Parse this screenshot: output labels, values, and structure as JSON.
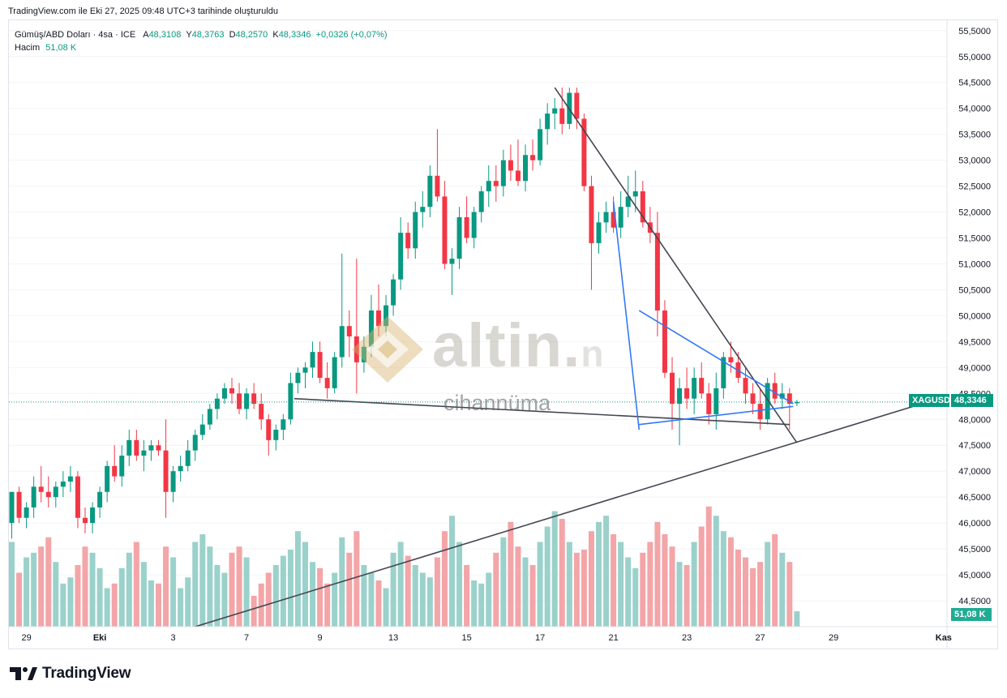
{
  "header": {
    "note": "TradingView.com ile Eki 27, 2025 09:48 UTC+3 tarihinde oluşturuldu"
  },
  "legend": {
    "symbol": "Gümüş/ABD Doları · 4sa · ICE",
    "o_label": "A",
    "o_value": "48,3108",
    "h_label": "Y",
    "h_value": "48,3763",
    "l_label": "D",
    "l_value": "48,2570",
    "c_label": "K",
    "c_value": "48,3346",
    "change": "+0,0326 (+0,07%)",
    "volume_label": "Hacim",
    "volume_value": "51,08 K"
  },
  "watermark": {
    "brand": "altin.",
    "brand_suffix": "n",
    "sub": "cihannüma"
  },
  "footer": {
    "brand": "TradingView"
  },
  "colors": {
    "up": "#089981",
    "down": "#f23645",
    "vol_up": "#9bd1cb",
    "vol_down": "#f3a5a8",
    "trend_dark": "#434651",
    "trend_blue": "#3179f5",
    "price_tag": "#089981"
  },
  "price_tags": {
    "symbol": "XAGUSD",
    "price": "48,3346",
    "volume": "51,08 K"
  },
  "chart_data": {
    "type": "candlestick",
    "symbol": "XAGUSD",
    "timeframe": "4sa",
    "ylim": [
      44.0,
      55.7
    ],
    "y_ticks": [
      "55,5000",
      "55,0000",
      "54,5000",
      "54,0000",
      "53,5000",
      "53,0000",
      "52,5000",
      "52,0000",
      "51,5000",
      "51,0000",
      "50,5000",
      "50,0000",
      "49,5000",
      "49,0000",
      "48,5000",
      "48,0000",
      "47,5000",
      "47,0000",
      "46,5000",
      "46,0000",
      "45,5000",
      "45,0000",
      "44,5000"
    ],
    "y_tick_values": [
      55.5,
      55.0,
      54.5,
      54.0,
      53.5,
      53.0,
      52.5,
      52.0,
      51.5,
      51.0,
      50.5,
      50.0,
      49.5,
      49.0,
      48.5,
      48.0,
      47.5,
      47.0,
      46.5,
      46.0,
      45.5,
      45.0,
      44.5
    ],
    "x_ticks": [
      {
        "label": "29",
        "bar": 2
      },
      {
        "label": "Eki",
        "bar": 12
      },
      {
        "label": "3",
        "bar": 22
      },
      {
        "label": "7",
        "bar": 32
      },
      {
        "label": "9",
        "bar": 42
      },
      {
        "label": "13",
        "bar": 52
      },
      {
        "label": "15",
        "bar": 62
      },
      {
        "label": "17",
        "bar": 72
      },
      {
        "label": "21",
        "bar": 82
      },
      {
        "label": "23",
        "bar": 92
      },
      {
        "label": "27",
        "bar": 102
      },
      {
        "label": "29",
        "bar": 112
      },
      {
        "label": "Kas",
        "bar": 127
      }
    ],
    "last_price": 48.3346,
    "volume_last": "51,08 K",
    "candles": [
      [
        46.0,
        46.6,
        45.7,
        46.6
      ],
      [
        46.6,
        46.7,
        46.0,
        46.1
      ],
      [
        46.1,
        46.4,
        45.9,
        46.3
      ],
      [
        46.3,
        46.9,
        46.1,
        46.7
      ],
      [
        46.7,
        47.1,
        46.4,
        46.6
      ],
      [
        46.6,
        46.9,
        46.3,
        46.5
      ],
      [
        46.5,
        46.8,
        46.3,
        46.7
      ],
      [
        46.7,
        47.0,
        46.5,
        46.8
      ],
      [
        46.8,
        47.1,
        46.6,
        46.9
      ],
      [
        46.9,
        47.0,
        45.9,
        46.1
      ],
      [
        46.1,
        46.3,
        45.8,
        46.0
      ],
      [
        46.0,
        46.4,
        45.8,
        46.3
      ],
      [
        46.3,
        46.7,
        46.1,
        46.6
      ],
      [
        46.6,
        47.2,
        46.4,
        47.1
      ],
      [
        47.1,
        47.5,
        46.8,
        46.9
      ],
      [
        46.9,
        47.5,
        46.7,
        47.3
      ],
      [
        47.3,
        47.8,
        47.1,
        47.6
      ],
      [
        47.6,
        47.8,
        47.2,
        47.3
      ],
      [
        47.3,
        47.6,
        47.0,
        47.4
      ],
      [
        47.4,
        47.6,
        47.2,
        47.5
      ],
      [
        47.5,
        47.6,
        47.3,
        47.4
      ],
      [
        47.4,
        48.0,
        46.1,
        46.6
      ],
      [
        46.6,
        47.1,
        46.4,
        47.0
      ],
      [
        47.0,
        47.3,
        46.8,
        47.1
      ],
      [
        47.1,
        47.6,
        47.0,
        47.4
      ],
      [
        47.4,
        47.8,
        47.2,
        47.7
      ],
      [
        47.7,
        48.1,
        47.6,
        47.9
      ],
      [
        47.9,
        48.3,
        47.8,
        48.2
      ],
      [
        48.2,
        48.5,
        48.0,
        48.4
      ],
      [
        48.4,
        48.7,
        48.3,
        48.6
      ],
      [
        48.6,
        48.8,
        48.3,
        48.5
      ],
      [
        48.5,
        48.7,
        48.1,
        48.2
      ],
      [
        48.2,
        48.6,
        48.0,
        48.5
      ],
      [
        48.5,
        48.7,
        48.2,
        48.3
      ],
      [
        48.3,
        48.5,
        47.8,
        48.0
      ],
      [
        48.0,
        48.1,
        47.3,
        47.6
      ],
      [
        47.6,
        47.9,
        47.4,
        47.8
      ],
      [
        47.8,
        48.1,
        47.6,
        48.0
      ],
      [
        48.0,
        48.9,
        47.9,
        48.7
      ],
      [
        48.7,
        49.0,
        48.5,
        48.9
      ],
      [
        48.9,
        49.1,
        48.6,
        49.0
      ],
      [
        49.0,
        49.5,
        48.8,
        49.3
      ],
      [
        49.3,
        49.5,
        48.7,
        48.8
      ],
      [
        48.8,
        49.1,
        48.4,
        48.6
      ],
      [
        48.6,
        49.3,
        48.5,
        49.2
      ],
      [
        49.2,
        51.2,
        49.0,
        49.8
      ],
      [
        49.8,
        50.1,
        49.2,
        49.6
      ],
      [
        49.6,
        51.1,
        48.5,
        49.1
      ],
      [
        49.1,
        49.6,
        48.9,
        49.4
      ],
      [
        49.4,
        50.4,
        49.2,
        50.1
      ],
      [
        50.1,
        50.6,
        49.6,
        49.8
      ],
      [
        49.8,
        50.4,
        49.6,
        50.2
      ],
      [
        50.2,
        50.8,
        50.0,
        50.7
      ],
      [
        50.7,
        51.9,
        50.5,
        51.6
      ],
      [
        51.6,
        51.8,
        51.1,
        51.3
      ],
      [
        51.3,
        52.2,
        51.1,
        52.0
      ],
      [
        52.0,
        52.4,
        51.7,
        52.1
      ],
      [
        52.1,
        52.9,
        51.9,
        52.7
      ],
      [
        52.7,
        53.6,
        52.2,
        52.3
      ],
      [
        52.3,
        52.6,
        50.9,
        51.0
      ],
      [
        51.0,
        51.3,
        50.4,
        51.1
      ],
      [
        51.1,
        52.1,
        50.9,
        51.9
      ],
      [
        51.9,
        52.3,
        51.4,
        51.5
      ],
      [
        51.5,
        52.1,
        51.3,
        52.0
      ],
      [
        52.0,
        52.5,
        51.8,
        52.4
      ],
      [
        52.4,
        52.9,
        52.1,
        52.6
      ],
      [
        52.6,
        52.9,
        52.2,
        52.5
      ],
      [
        52.5,
        53.2,
        52.3,
        53.0
      ],
      [
        53.0,
        53.3,
        52.6,
        52.8
      ],
      [
        52.8,
        53.4,
        52.5,
        52.6
      ],
      [
        52.6,
        53.3,
        52.4,
        53.1
      ],
      [
        53.1,
        53.4,
        52.8,
        53.0
      ],
      [
        53.0,
        53.8,
        52.9,
        53.6
      ],
      [
        53.6,
        54.1,
        53.3,
        53.9
      ],
      [
        53.9,
        54.2,
        53.6,
        54.0
      ],
      [
        54.0,
        54.4,
        53.5,
        53.7
      ],
      [
        53.7,
        54.4,
        53.6,
        54.3
      ],
      [
        54.3,
        54.4,
        53.6,
        53.8
      ],
      [
        53.8,
        53.9,
        52.4,
        52.5
      ],
      [
        52.5,
        52.7,
        50.5,
        51.4
      ],
      [
        51.4,
        52.0,
        51.2,
        51.8
      ],
      [
        51.8,
        52.2,
        51.6,
        52.0
      ],
      [
        52.0,
        52.3,
        51.6,
        51.7
      ],
      [
        51.7,
        52.4,
        51.5,
        52.1
      ],
      [
        52.1,
        52.7,
        51.9,
        52.3
      ],
      [
        52.3,
        52.8,
        52.0,
        52.4
      ],
      [
        52.4,
        52.6,
        51.7,
        51.8
      ],
      [
        51.8,
        52.1,
        51.4,
        51.6
      ],
      [
        51.6,
        52.0,
        49.6,
        50.1
      ],
      [
        50.1,
        50.3,
        48.8,
        48.9
      ],
      [
        48.9,
        49.2,
        47.8,
        48.3
      ],
      [
        48.3,
        48.8,
        47.5,
        48.6
      ],
      [
        48.6,
        49.0,
        48.2,
        48.4
      ],
      [
        48.4,
        49.0,
        48.1,
        48.8
      ],
      [
        48.8,
        49.1,
        48.4,
        48.5
      ],
      [
        48.5,
        48.7,
        47.9,
        48.1
      ],
      [
        48.1,
        48.9,
        47.8,
        48.6
      ],
      [
        48.6,
        49.3,
        48.4,
        49.2
      ],
      [
        49.2,
        49.5,
        48.9,
        49.1
      ],
      [
        49.1,
        49.3,
        48.7,
        48.8
      ],
      [
        48.8,
        49.0,
        48.3,
        48.5
      ],
      [
        48.5,
        48.7,
        48.1,
        48.3
      ],
      [
        48.3,
        48.6,
        47.8,
        48.0
      ],
      [
        48.0,
        48.8,
        47.9,
        48.7
      ],
      [
        48.7,
        48.9,
        48.3,
        48.4
      ],
      [
        48.4,
        48.7,
        48.2,
        48.5
      ],
      [
        48.5,
        48.6,
        47.8,
        48.3
      ],
      [
        48.311,
        48.3763,
        48.257,
        48.3346
      ]
    ],
    "volume_relative": [
      0.55,
      0.35,
      0.45,
      0.48,
      0.52,
      0.58,
      0.42,
      0.28,
      0.32,
      0.4,
      0.52,
      0.48,
      0.38,
      0.25,
      0.28,
      0.38,
      0.48,
      0.55,
      0.42,
      0.3,
      0.28,
      0.52,
      0.45,
      0.25,
      0.32,
      0.55,
      0.6,
      0.52,
      0.4,
      0.35,
      0.48,
      0.52,
      0.45,
      0.2,
      0.28,
      0.35,
      0.4,
      0.46,
      0.5,
      0.62,
      0.55,
      0.42,
      0.38,
      0.28,
      0.35,
      0.58,
      0.48,
      0.62,
      0.4,
      0.35,
      0.3,
      0.25,
      0.48,
      0.55,
      0.46,
      0.4,
      0.35,
      0.32,
      0.45,
      0.62,
      0.72,
      0.55,
      0.4,
      0.3,
      0.28,
      0.35,
      0.48,
      0.58,
      0.68,
      0.52,
      0.45,
      0.4,
      0.55,
      0.65,
      0.75,
      0.7,
      0.55,
      0.48,
      0.5,
      0.62,
      0.68,
      0.72,
      0.6,
      0.55,
      0.45,
      0.38,
      0.48,
      0.55,
      0.68,
      0.6,
      0.52,
      0.42,
      0.4,
      0.55,
      0.65,
      0.78,
      0.72,
      0.62,
      0.58,
      0.5,
      0.45,
      0.38,
      0.42,
      0.55,
      0.6,
      0.48,
      0.42,
      0.1
    ],
    "trendlines": [
      {
        "kind": "dark",
        "from": [
          74,
          54.4
        ],
        "to": [
          107,
          47.55
        ]
      },
      {
        "kind": "dark",
        "from": [
          38.5,
          48.4
        ],
        "to": [
          106,
          47.9
        ]
      },
      {
        "kind": "dark",
        "from": [
          25,
          44.0
        ],
        "to": [
          124,
          48.3
        ]
      },
      {
        "kind": "blue",
        "from": [
          82,
          52.2
        ],
        "to": [
          85.5,
          47.8
        ]
      },
      {
        "kind": "blue",
        "from": [
          85.5,
          50.1
        ],
        "to": [
          106.5,
          48.3
        ]
      },
      {
        "kind": "blue",
        "from": [
          85.5,
          47.9
        ],
        "to": [
          106.5,
          48.25
        ]
      }
    ]
  }
}
